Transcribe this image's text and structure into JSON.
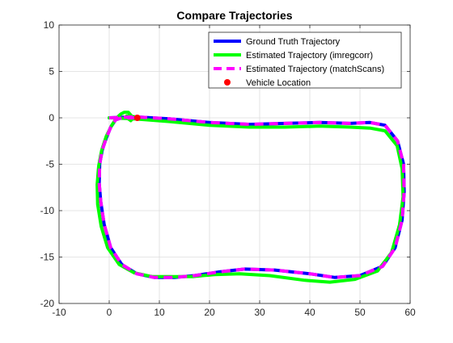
{
  "chart_data": {
    "type": "line",
    "title": "Compare Trajectories",
    "xlabel": "",
    "ylabel": "",
    "xlim": [
      -10,
      60
    ],
    "ylim": [
      -20,
      10
    ],
    "xticks": [
      -10,
      0,
      10,
      20,
      30,
      40,
      50,
      60
    ],
    "yticks": [
      -20,
      -15,
      -10,
      -5,
      0,
      5,
      10
    ],
    "grid": true,
    "legend_position": "top-right",
    "series": [
      {
        "name": "Ground Truth Trajectory",
        "style": "solid",
        "color": "#0000ff",
        "x": [
          0,
          5,
          12,
          20,
          28,
          35,
          42,
          48,
          52,
          55,
          57.5,
          58.7,
          58.8,
          58.4,
          57.0,
          54.5,
          50,
          45,
          40,
          33,
          27,
          22,
          17,
          13,
          9,
          5.5,
          2.5,
          0.3,
          -1.0,
          -1.7,
          -2.0,
          -1.9,
          -1.4,
          -0.6,
          0.3,
          1.3,
          2.5,
          3.5,
          4.6,
          5.6
        ],
        "y": [
          0,
          0.1,
          -0.1,
          -0.5,
          -0.7,
          -0.6,
          -0.5,
          -0.6,
          -0.5,
          -0.8,
          -2.5,
          -5.0,
          -8.0,
          -11.0,
          -14.0,
          -16.0,
          -17.0,
          -17.2,
          -16.8,
          -16.4,
          -16.3,
          -16.6,
          -17.0,
          -17.2,
          -17.2,
          -16.8,
          -15.8,
          -14.0,
          -11.5,
          -9.0,
          -7.0,
          -5.0,
          -3.5,
          -2.2,
          -1.0,
          -0.2,
          0.0,
          0.0,
          0.0,
          0.0
        ]
      },
      {
        "name": "Estimated Trajectory (imregcorr)",
        "style": "solid",
        "color": "#00ff00",
        "x": [
          0,
          5,
          12,
          20,
          28,
          35,
          42,
          48,
          52,
          55,
          57.4,
          58.4,
          58.6,
          57.9,
          56.3,
          53.5,
          49,
          44,
          39,
          32,
          26,
          21,
          16.5,
          12.5,
          8.5,
          5.0,
          2.0,
          -0.3,
          -1.6,
          -2.3,
          -2.4,
          -2.1,
          -1.5,
          -0.6,
          0.5,
          1.5,
          2.3,
          3.0,
          3.8,
          4.3,
          4.6,
          4.3,
          3.6,
          3.5,
          4.2,
          5.0,
          5.6
        ],
        "y": [
          0,
          -0.1,
          -0.4,
          -0.8,
          -1.0,
          -1.0,
          -0.9,
          -1.0,
          -1.1,
          -1.4,
          -3.0,
          -5.5,
          -8.5,
          -11.5,
          -14.5,
          -16.5,
          -17.4,
          -17.7,
          -17.5,
          -17.0,
          -16.8,
          -16.9,
          -17.1,
          -17.1,
          -17.1,
          -16.7,
          -15.8,
          -14.0,
          -11.7,
          -9.3,
          -7.2,
          -5.2,
          -3.5,
          -2.0,
          -0.8,
          0.0,
          0.4,
          0.6,
          0.6,
          0.3,
          -0.1,
          -0.3,
          0.0,
          0.2,
          0.2,
          0.1,
          0.0
        ]
      },
      {
        "name": "Estimated Trajectory (matchScans)",
        "style": "dashed",
        "color": "#ff00ff",
        "x": [
          0,
          5,
          12,
          20,
          28,
          35,
          42,
          48,
          52,
          55,
          57.5,
          58.7,
          58.8,
          58.4,
          57.0,
          54.5,
          50,
          45,
          40,
          33,
          27,
          22,
          17,
          13,
          9,
          5.5,
          2.5,
          0.3,
          -1.0,
          -1.7,
          -2.0,
          -1.9,
          -1.4,
          -0.6,
          0.3,
          1.3,
          2.5,
          3.5,
          4.6,
          5.6
        ],
        "y": [
          0,
          0.1,
          -0.1,
          -0.5,
          -0.7,
          -0.6,
          -0.5,
          -0.6,
          -0.5,
          -0.8,
          -2.5,
          -5.0,
          -8.0,
          -11.0,
          -14.0,
          -16.0,
          -17.0,
          -17.2,
          -16.8,
          -16.4,
          -16.3,
          -16.6,
          -17.0,
          -17.2,
          -17.2,
          -16.8,
          -15.8,
          -14.0,
          -11.5,
          -9.0,
          -7.0,
          -5.0,
          -3.5,
          -2.2,
          -1.0,
          -0.2,
          0.0,
          0.0,
          0.0,
          0.0
        ]
      },
      {
        "name": "Vehicle Location",
        "style": "marker",
        "color": "#ff0000",
        "x": [
          5.6
        ],
        "y": [
          0.0
        ]
      }
    ]
  }
}
